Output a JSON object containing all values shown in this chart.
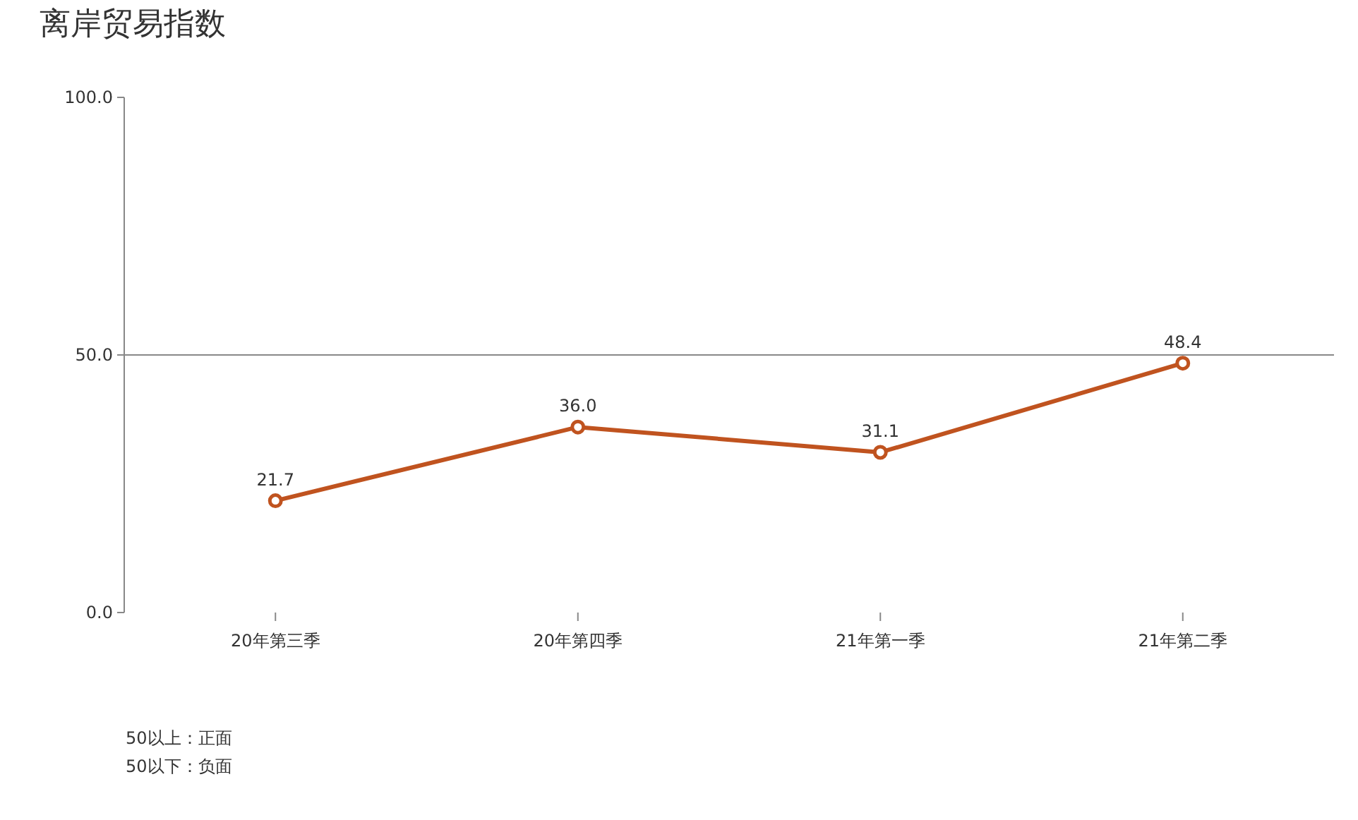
{
  "chart_data": {
    "type": "line",
    "title": "离岸贸易指数",
    "categories": [
      "20年第三季",
      "20年第四季",
      "21年第一季",
      "21年第二季"
    ],
    "series": [
      {
        "color": "#c0531f",
        "values": [
          21.7,
          36.0,
          31.1,
          48.4
        ],
        "value_labels": [
          "21.7",
          "36.0",
          "31.1",
          "48.4"
        ]
      }
    ],
    "ylim": [
      0,
      100
    ],
    "yticks": [
      {
        "value": 0,
        "label": "0.0"
      },
      {
        "value": 50,
        "label": "50.0"
      },
      {
        "value": 100,
        "label": "100.0"
      }
    ],
    "ref_lines": [
      {
        "axis": "y",
        "value": 50,
        "color": "#888888"
      }
    ],
    "marker": "circle",
    "grid": false,
    "annotations": [
      "50以上：正面",
      "50以下：负面"
    ]
  }
}
